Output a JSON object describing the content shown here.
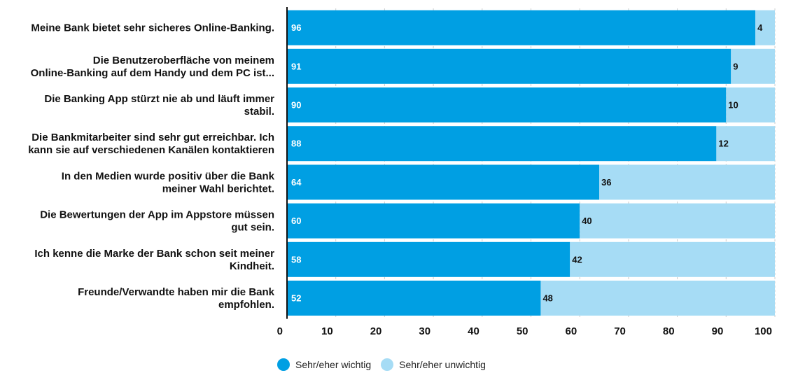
{
  "chart_data": {
    "type": "bar",
    "orientation": "horizontal",
    "stacked": true,
    "categories": [
      [
        "Meine Bank bietet sehr sicheres Online-Banking."
      ],
      [
        "Die Benutzeroberfläche von meinem",
        "Online-Banking auf dem Handy und dem PC ist..."
      ],
      [
        "Die Banking App stürzt nie ab und läuft immer",
        "stabil."
      ],
      [
        "Die Bankmitarbeiter sind sehr gut erreichbar. Ich",
        "kann sie auf verschiedenen Kanälen kontaktieren"
      ],
      [
        "In den Medien wurde positiv über die Bank",
        "meiner Wahl berichtet."
      ],
      [
        "Die Bewertungen der App im Appstore müssen",
        "gut sein."
      ],
      [
        "Ich kenne die Marke der Bank schon seit meiner",
        "Kindheit."
      ],
      [
        "Freunde/Verwandte haben mir die Bank",
        "empfohlen."
      ]
    ],
    "series": [
      {
        "name": "Sehr/eher wichtig",
        "color": "#009fe3",
        "values": [
          96,
          91,
          90,
          88,
          64,
          60,
          58,
          52
        ]
      },
      {
        "name": "Sehr/eher unwichtig",
        "color": "#a6dcf5",
        "values": [
          4,
          9,
          10,
          12,
          36,
          40,
          42,
          48
        ]
      }
    ],
    "xlim": [
      0,
      100
    ],
    "xticks": [
      0,
      10,
      20,
      30,
      40,
      50,
      60,
      70,
      80,
      90,
      100
    ],
    "grid": true,
    "legend_position": "bottom"
  }
}
